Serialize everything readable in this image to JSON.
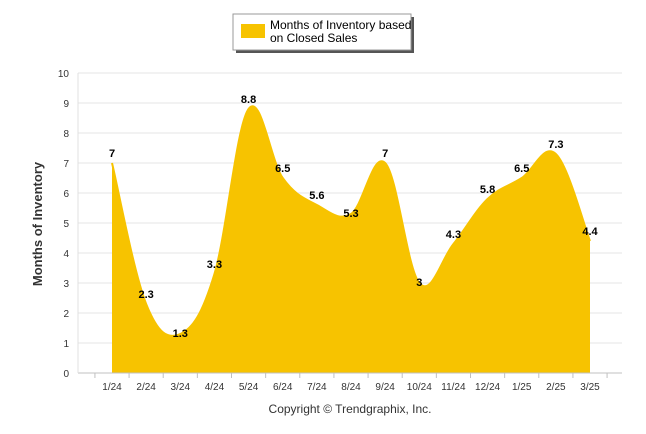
{
  "chart_data": {
    "type": "area",
    "categories": [
      "1/24",
      "2/24",
      "3/24",
      "4/24",
      "5/24",
      "6/24",
      "7/24",
      "8/24",
      "9/24",
      "10/24",
      "11/24",
      "12/24",
      "1/25",
      "2/25",
      "3/25"
    ],
    "series": [
      {
        "name": "Months of Inventory based on Closed Sales",
        "values": [
          7,
          2.3,
          1.3,
          3.3,
          8.8,
          6.5,
          5.6,
          5.3,
          7,
          3,
          4.3,
          5.8,
          6.5,
          7.3,
          4.4
        ]
      }
    ],
    "data_labels": [
      "7",
      "2.3",
      "1.3",
      "3.3",
      "8.8",
      "6.5",
      "5.6",
      "5.3",
      "7",
      "3",
      "4.3",
      "5.8",
      "6.5",
      "7.3",
      "4.4"
    ],
    "ylabel": "Months of Inventory",
    "ylim": [
      0,
      10
    ],
    "yticks": [
      "0",
      "1",
      "2",
      "3",
      "4",
      "5",
      "6",
      "7",
      "8",
      "9",
      "10"
    ],
    "grid": true,
    "legend": {
      "position": "top-center",
      "line1": "Months of Inventory based",
      "line2": "on Closed Sales"
    },
    "footer": "Copyright © Trendgraphix, Inc.",
    "colors": {
      "fill": "#F7C300",
      "grid": "#e6e6e6",
      "axis": "#c0c0c0"
    }
  }
}
